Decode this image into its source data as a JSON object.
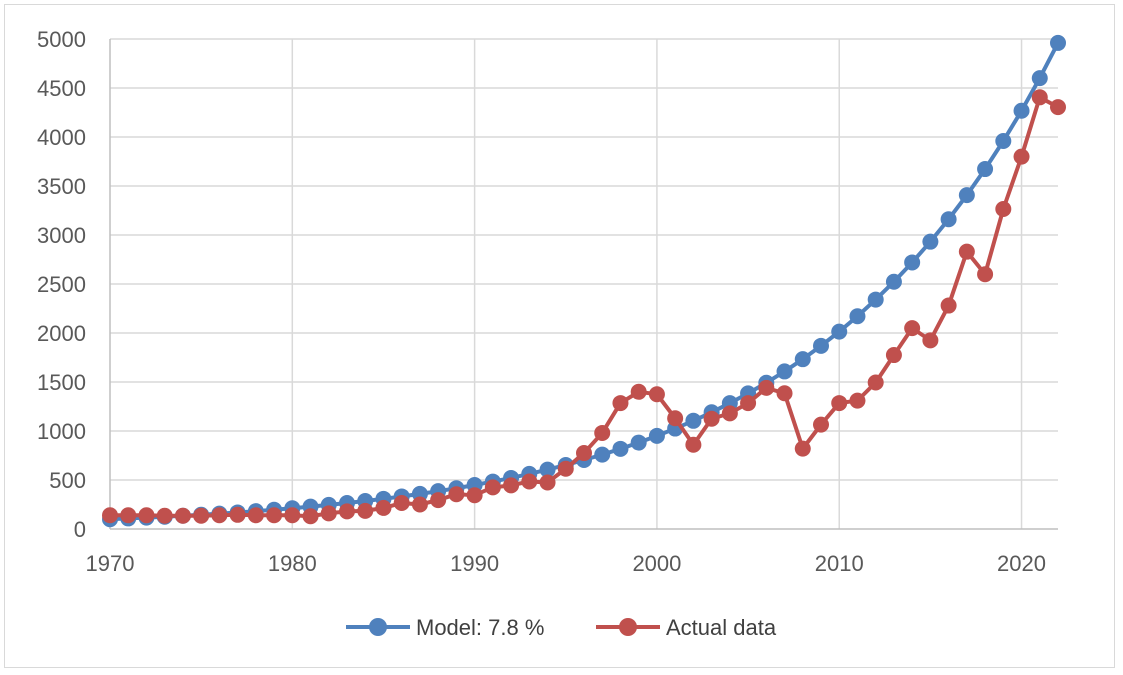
{
  "chart_data": {
    "type": "line",
    "title": "",
    "xlabel": "",
    "ylabel": "",
    "xlim": [
      1970,
      2022
    ],
    "ylim": [
      0,
      5000
    ],
    "x_ticks": [
      1970,
      1980,
      1990,
      2000,
      2010,
      2020
    ],
    "y_ticks": [
      0,
      500,
      1000,
      1500,
      2000,
      2500,
      3000,
      3500,
      4000,
      4500,
      5000
    ],
    "grid": "vertical and horizontal major gridlines",
    "legend_position": "bottom",
    "x": [
      1970,
      1971,
      1972,
      1973,
      1974,
      1975,
      1976,
      1977,
      1978,
      1979,
      1980,
      1981,
      1982,
      1983,
      1984,
      1985,
      1986,
      1987,
      1988,
      1989,
      1990,
      1991,
      1992,
      1993,
      1994,
      1995,
      1996,
      1997,
      1998,
      1999,
      2000,
      2001,
      2002,
      2003,
      2004,
      2005,
      2006,
      2007,
      2008,
      2009,
      2010,
      2011,
      2012,
      2013,
      2014,
      2015,
      2016,
      2017,
      2018,
      2019,
      2020,
      2021,
      2022
    ],
    "series": [
      {
        "name": "Model: 7.8 %",
        "color": "#4f81bd",
        "values": [
          100,
          108,
          116,
          125,
          135,
          145,
          157,
          169,
          182,
          196,
          212,
          228,
          246,
          265,
          286,
          308,
          332,
          358,
          386,
          416,
          449,
          484,
          521,
          562,
          606,
          653,
          704,
          759,
          818,
          882,
          950,
          1025,
          1104,
          1191,
          1284,
          1384,
          1492,
          1608,
          1733,
          1869,
          2014,
          2171,
          2341,
          2523,
          2720,
          2932,
          3161,
          3407,
          3673,
          3959,
          4268,
          4601,
          4960
        ]
      },
      {
        "name": "Actual data",
        "color": "#c0504d",
        "values": [
          140,
          140,
          140,
          135,
          135,
          135,
          140,
          145,
          140,
          140,
          140,
          130,
          160,
          180,
          185,
          215,
          265,
          250,
          295,
          355,
          345,
          425,
          445,
          485,
          475,
          615,
          775,
          980,
          1285,
          1400,
          1375,
          1130,
          860,
          1125,
          1180,
          1285,
          1440,
          1385,
          820,
          1065,
          1285,
          1310,
          1495,
          1775,
          2050,
          1925,
          2280,
          2830,
          2600,
          3265,
          3800,
          4405,
          4305
        ]
      }
    ]
  },
  "legend": {
    "items": [
      {
        "label": "Model: 7.8 %",
        "color": "#4f81bd"
      },
      {
        "label": "Actual data",
        "color": "#c0504d"
      }
    ]
  },
  "colors": {
    "grid": "#d9d9d9",
    "axis": "#bfbfbf",
    "tick_text": "#595959"
  }
}
